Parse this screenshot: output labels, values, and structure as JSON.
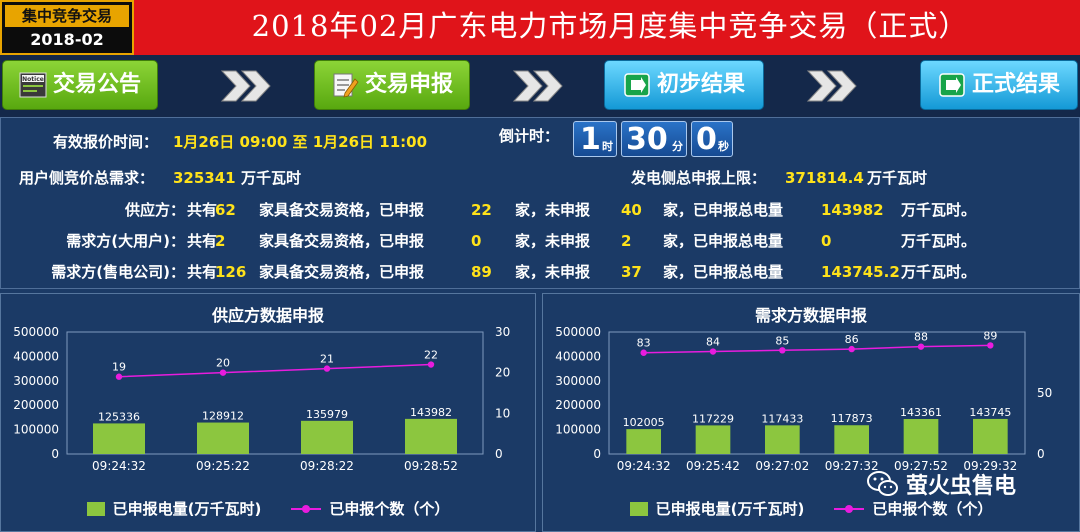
{
  "header": {
    "badge_top": "集中竞争交易",
    "badge_date": "2018-02",
    "title": "2018年02月广东电力市场月度集中竞争交易（正式）"
  },
  "process": {
    "steps": [
      {
        "label": "交易公告",
        "icon": "notice-icon"
      },
      {
        "label": "交易申报",
        "icon": "edit-icon"
      },
      {
        "label": "初步结果",
        "icon": "result-icon"
      },
      {
        "label": "正式结果",
        "icon": "result-icon"
      }
    ]
  },
  "info": {
    "time_label": "有效报价时间：",
    "time_value": "1月26日 09:00 至 1月26日 11:00",
    "countdown_label": "倒计时：",
    "cd_hours": "1",
    "cd_hours_unit": "时",
    "cd_minutes": "30",
    "cd_minutes_unit": "分",
    "cd_seconds": "0",
    "cd_seconds_unit": "秒",
    "user_demand_label": "用户侧竞价总需求：",
    "user_demand_value": "325341",
    "user_demand_unit": "万千瓦时",
    "gen_limit_label": "发电侧总申报上限：",
    "gen_limit_value": "371814.4",
    "gen_limit_unit": "万千瓦时",
    "rows": [
      {
        "name": "供应方：",
        "total": "62",
        "declared": "22",
        "undeclared": "40",
        "energy": "143982"
      },
      {
        "name": "需求方(大用户)：",
        "total": "2",
        "declared": "0",
        "undeclared": "2",
        "energy": "0"
      },
      {
        "name": "需求方(售电公司)：",
        "total": "126",
        "declared": "89",
        "undeclared": "37",
        "energy": "143745.2"
      }
    ],
    "txt_gong": "共有",
    "txt_qual": "家具备交易资格，已申报",
    "txt_jia_wei": "家，未申报",
    "txt_jia_total": "家，已申报总电量",
    "txt_unit": "万千瓦时。"
  },
  "chart_data": [
    {
      "type": "bar",
      "title": "供应方数据申报",
      "categories": [
        "09:24:32",
        "09:25:22",
        "09:28:22",
        "09:28:52"
      ],
      "series": [
        {
          "name": "已申报电量(万千瓦时)",
          "type": "bar",
          "axis": "left",
          "values": [
            125336,
            128912,
            135979,
            143982
          ]
        },
        {
          "name": "已申报个数（个）",
          "type": "line",
          "axis": "right",
          "values": [
            19,
            20,
            21,
            22
          ]
        }
      ],
      "ylim": [
        0,
        500000
      ],
      "yticks": [
        0,
        100000,
        200000,
        300000,
        400000,
        500000
      ],
      "y2lim": [
        0,
        30
      ],
      "y2ticks": [
        0,
        10,
        20,
        30
      ],
      "grid": false,
      "legend": "bottom",
      "colors": {
        "bar": "#8cc63f",
        "line": "#e81cde"
      }
    },
    {
      "type": "bar",
      "title": "需求方数据申报",
      "categories": [
        "09:24:32",
        "09:25:42",
        "09:27:02",
        "09:27:32",
        "09:27:52",
        "09:29:32"
      ],
      "series": [
        {
          "name": "已申报电量(万千瓦时)",
          "type": "bar",
          "axis": "left",
          "values": [
            102005,
            117229,
            117433,
            117873,
            143361,
            143745
          ]
        },
        {
          "name": "已申报个数（个）",
          "type": "line",
          "axis": "right",
          "values": [
            83,
            84,
            85,
            86,
            88,
            89
          ]
        }
      ],
      "ylim": [
        0,
        500000
      ],
      "yticks": [
        0,
        100000,
        200000,
        300000,
        400000,
        500000
      ],
      "y2lim": [
        0,
        100
      ],
      "y2ticks": [
        0,
        50,
        100
      ],
      "y2ticklabels": [
        "0",
        "50",
        ""
      ],
      "grid": false,
      "legend": "bottom",
      "colors": {
        "bar": "#8cc63f",
        "line": "#e81cde"
      }
    }
  ],
  "watermark": {
    "text": "萤火虫售电",
    "icon": "wechat-icon"
  }
}
